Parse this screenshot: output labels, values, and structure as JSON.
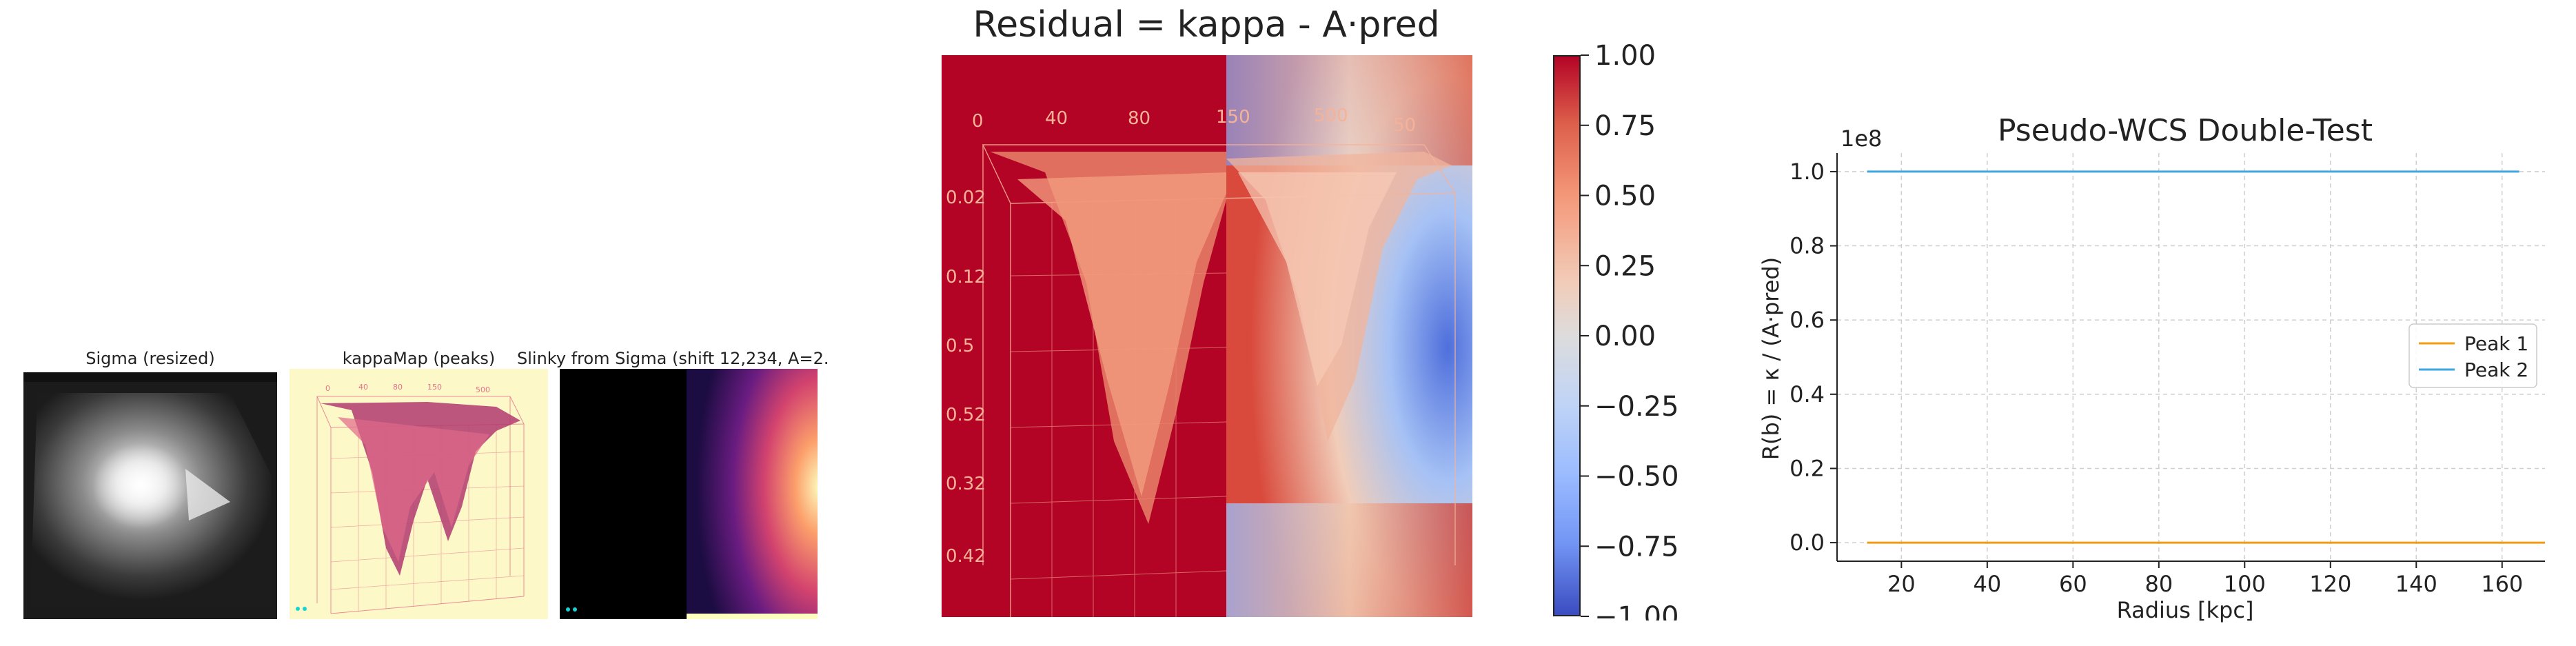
{
  "panels": {
    "sigma": {
      "title": "Sigma (resized)"
    },
    "kappa": {
      "title": "kappaMap (peaks)"
    },
    "slinky": {
      "title": "Slinky from Sigma (shift 12,234, A=2."
    },
    "residual": {
      "title": "Residual = kappa - A·pred",
      "colormap": "coolwarm",
      "colorbar_ticks": [
        "1.00",
        "0.75",
        "0.50",
        "0.25",
        "0.00",
        "−0.25",
        "−0.50",
        "−0.75",
        "−1.00"
      ],
      "colorbar_values": [
        1.0,
        0.75,
        0.5,
        0.25,
        0.0,
        -0.25,
        -0.5,
        -0.75,
        -1.0
      ],
      "vmin": -1.0,
      "vmax": 1.0
    }
  },
  "chart_data": {
    "type": "line",
    "title": "Pseudo-WCS Double-Test",
    "xlabel": "Radius [kpc]",
    "ylabel": "R(b) = κ / (A·pred)",
    "offset_label": "1e8",
    "xlim": [
      5,
      170
    ],
    "ylim": [
      -0.05,
      1.05
    ],
    "xticks": [
      20,
      40,
      60,
      80,
      100,
      120,
      140,
      160
    ],
    "yticks": [
      0.0,
      0.2,
      0.4,
      0.6,
      0.8,
      1.0
    ],
    "ytick_labels": [
      "0.0",
      "0.2",
      "0.4",
      "0.6",
      "0.8",
      "1.0"
    ],
    "grid": true,
    "legend_position": "center-right",
    "series": [
      {
        "name": "Peak 1",
        "color": "#f39c12",
        "x": [
          12,
          170
        ],
        "y": [
          0.0,
          0.0
        ]
      },
      {
        "name": "Peak 2",
        "color": "#3ea7e0",
        "x": [
          12,
          164
        ],
        "y": [
          1.0,
          1.0
        ]
      }
    ]
  }
}
